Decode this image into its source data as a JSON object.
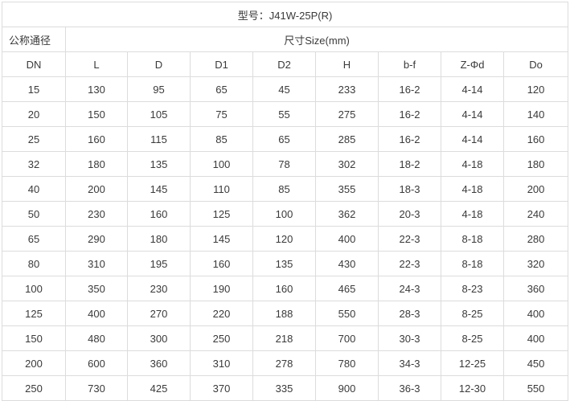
{
  "title": "型号：J41W-25P(R)",
  "group_header": {
    "nominal_diameter": "公称通径",
    "size": "尺寸Size(mm)"
  },
  "columns": [
    "DN",
    "L",
    "D",
    "D1",
    "D2",
    "H",
    "b-f",
    "Z-Φd",
    "Do"
  ],
  "rows": [
    [
      "15",
      "130",
      "95",
      "65",
      "45",
      "233",
      "16-2",
      "4-14",
      "120"
    ],
    [
      "20",
      "150",
      "105",
      "75",
      "55",
      "275",
      "16-2",
      "4-14",
      "140"
    ],
    [
      "25",
      "160",
      "115",
      "85",
      "65",
      "285",
      "16-2",
      "4-14",
      "160"
    ],
    [
      "32",
      "180",
      "135",
      "100",
      "78",
      "302",
      "18-2",
      "4-18",
      "180"
    ],
    [
      "40",
      "200",
      "145",
      "110",
      "85",
      "355",
      "18-3",
      "4-18",
      "200"
    ],
    [
      "50",
      "230",
      "160",
      "125",
      "100",
      "362",
      "20-3",
      "4-18",
      "240"
    ],
    [
      "65",
      "290",
      "180",
      "145",
      "120",
      "400",
      "22-3",
      "8-18",
      "280"
    ],
    [
      "80",
      "310",
      "195",
      "160",
      "135",
      "430",
      "22-3",
      "8-18",
      "320"
    ],
    [
      "100",
      "350",
      "230",
      "190",
      "160",
      "465",
      "24-3",
      "8-23",
      "360"
    ],
    [
      "125",
      "400",
      "270",
      "220",
      "188",
      "550",
      "28-3",
      "8-25",
      "400"
    ],
    [
      "150",
      "480",
      "300",
      "250",
      "218",
      "700",
      "30-3",
      "8-25",
      "400"
    ],
    [
      "200",
      "600",
      "360",
      "310",
      "278",
      "780",
      "34-3",
      "12-25",
      "450"
    ],
    [
      "250",
      "730",
      "425",
      "370",
      "335",
      "900",
      "36-3",
      "12-30",
      "550"
    ]
  ]
}
